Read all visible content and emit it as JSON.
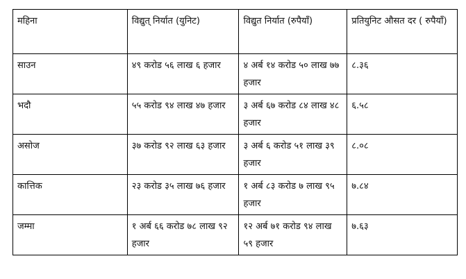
{
  "table": {
    "headers": [
      "महिना",
      "विद्युत् निर्यात (युनिट)",
      "विद्युत निर्यात (रुपैयाँ)",
      "प्रतियुनिट औसत दर ( रुपैयाँ)"
    ],
    "rows": [
      [
        "साउन",
        "४९ करोड ५६ लाख ६ हजार",
        "४ अर्ब १४ करोड ५० लाख ७७ हजार",
        "८.३६"
      ],
      [
        "भदौ",
        "५५ करोड ९४ लाख ४७ हजार",
        "३ अर्ब ६७ करोड ८४ लाख ४८ हजार",
        "६.५८"
      ],
      [
        "असोज",
        "३७ करोड ९२ लाख ६३ हजार",
        "३ अर्ब  ६ करोड ५१ लाख ३९ हजार",
        "८.०८"
      ],
      [
        "कात्तिक",
        "२३ करोड ३५ लाख ७६ हजार",
        "१ अर्ब ८३ करोड ७ लाख ९५ हजार",
        "७.८४"
      ],
      [
        "जम्मा",
        "१ अर्ब ६६ करोड ७८ लाख ९२ हजार",
        "१२ अर्ब ७१ करोड ९४ लाख ५९ हजार",
        "७.६३"
      ]
    ]
  }
}
